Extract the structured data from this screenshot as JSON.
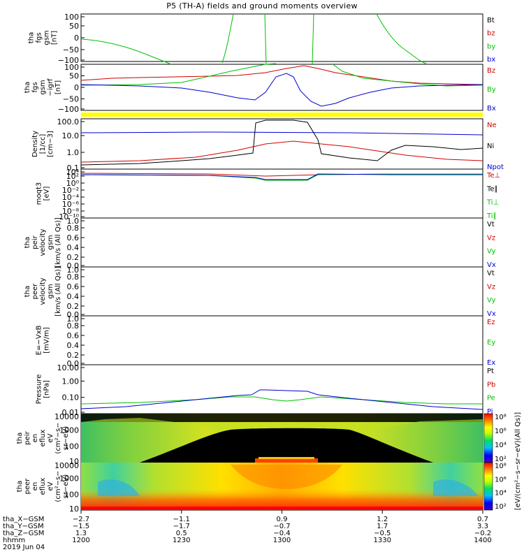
{
  "title": "P5 (TH-A) fields and ground moments overview",
  "colors": {
    "black": "#000000",
    "red": "#d00000",
    "green": "#00c000",
    "blue": "#0000d0",
    "yellow": "#ffff00"
  },
  "chart_data": [
    {
      "type": "line",
      "ylabel": [
        "tha",
        "fgs",
        "gsm",
        "[nT]"
      ],
      "yticks": [
        "100",
        "50",
        "0",
        "−50",
        "−100"
      ],
      "ylim": [
        -100,
        100
      ],
      "legend": [
        {
          "name": "Bt",
          "color": "black"
        },
        {
          "name": "bz",
          "color": "red"
        },
        {
          "name": "by",
          "color": "green"
        },
        {
          "name": "bx",
          "color": "blue"
        }
      ]
    },
    {
      "type": "line",
      "ylabel": [
        "tha",
        "fgs",
        "gsm",
        "−igrf",
        "[nT]"
      ],
      "yticks": [
        "100",
        "50",
        "0",
        "−50",
        "−100"
      ],
      "ylim": [
        -120,
        120
      ],
      "legend": [
        {
          "name": "Bz",
          "color": "red"
        },
        {
          "name": "By",
          "color": "green"
        },
        {
          "name": "Bx",
          "color": "blue"
        }
      ]
    },
    {
      "type": "line",
      "ylabel": [
        "Density",
        "[1/cc]",
        "[cm−3]"
      ],
      "yticks": [
        "100.0",
        "10.0",
        "1.0",
        "0.1"
      ],
      "ylim": [
        0.05,
        300
      ],
      "log": true,
      "legend": [
        {
          "name": "Ne",
          "color": "red"
        },
        {
          "name": "Ni",
          "color": "black"
        },
        {
          "name": "Npot",
          "color": "blue"
        }
      ]
    },
    {
      "type": "line",
      "ylabel": [
        "moqt3",
        "[eV]"
      ],
      "yticks": [
        "10⁴",
        "10²",
        "10⁰",
        "10⁻²",
        "10⁻⁴",
        "10⁻⁶",
        "10⁻⁸",
        "10⁻¹⁰"
      ],
      "log": true,
      "legend": [
        {
          "name": "Te⊥",
          "color": "red"
        },
        {
          "name": "Te∥",
          "color": "black"
        },
        {
          "name": "Ti⊥",
          "color": "green"
        },
        {
          "name": "Ti∥",
          "color": "green"
        }
      ]
    },
    {
      "type": "line",
      "ylabel": [
        "tha",
        "peir",
        "velocity",
        "gsm",
        "[km/s (All Qs)]"
      ],
      "yticks": [
        "1.0",
        "0.8",
        "0.6",
        "0.4",
        "0.2",
        "0.0"
      ],
      "ylim": [
        0,
        1
      ],
      "legend": [
        {
          "name": "Vt",
          "color": "black"
        },
        {
          "name": "Vz",
          "color": "red"
        },
        {
          "name": "Vy",
          "color": "green"
        },
        {
          "name": "Vx",
          "color": "blue"
        }
      ]
    },
    {
      "type": "line",
      "ylabel": [
        "tha",
        "peer",
        "velocity",
        "gsm",
        "[km/s (All Qs)]"
      ],
      "yticks": [
        "1.0",
        "0.8",
        "0.6",
        "0.4",
        "0.2",
        "0.0"
      ],
      "ylim": [
        0,
        1
      ],
      "legend": [
        {
          "name": "Vt",
          "color": "black"
        },
        {
          "name": "Vz",
          "color": "red"
        },
        {
          "name": "Vy",
          "color": "green"
        },
        {
          "name": "Vx",
          "color": "blue"
        }
      ]
    },
    {
      "type": "line",
      "ylabel": [
        "E=−VxB",
        "[mV/m]"
      ],
      "yticks": [
        "1.0",
        "0.8",
        "0.6",
        "0.4",
        "0.2",
        "0.0"
      ],
      "ylim": [
        0,
        1
      ],
      "legend": [
        {
          "name": "Ez",
          "color": "red"
        },
        {
          "name": "Ey",
          "color": "green"
        },
        {
          "name": "Ex",
          "color": "blue"
        }
      ]
    },
    {
      "type": "line",
      "ylabel": [
        "Pressure",
        "[nPa]"
      ],
      "yticks": [
        "10.00",
        "1.00",
        "0.10",
        "0.01"
      ],
      "log": true,
      "legend": [
        {
          "name": "Pt",
          "color": "black"
        },
        {
          "name": "Pb",
          "color": "red"
        },
        {
          "name": "Pe",
          "color": "green"
        },
        {
          "name": "Pi",
          "color": "blue"
        }
      ]
    },
    {
      "type": "heatmap",
      "ylabel": [
        "tha",
        "peir",
        "en",
        "eflux",
        "eV",
        "(cm²−s−",
        "sr−eV)"
      ],
      "yticks": [
        "10000",
        "1000",
        "100",
        "10"
      ]
    },
    {
      "type": "heatmap",
      "ylabel": [
        "tha",
        "peer",
        "en",
        "eflux",
        "eV",
        "(cm²−s−",
        "sr−eV)"
      ],
      "yticks": [
        "10000",
        "1000",
        "100",
        "10"
      ]
    }
  ],
  "colorbar": {
    "label": "[eV/(cm²−s−sr−eV)(All Qs)]",
    "upper_ticks": [
      "10⁸",
      "10⁶",
      "10⁴",
      "10²"
    ],
    "lower_ticks": [
      "10⁸",
      "10⁶",
      "10⁴",
      "10²"
    ]
  },
  "x_axis": {
    "rows": [
      {
        "label": "tha_X−GSM",
        "values": [
          "−2.7",
          "−1.1",
          "0.9",
          "1.2",
          "0.7"
        ]
      },
      {
        "label": "tha_Y−GSM",
        "values": [
          "−1.5",
          "−1.7",
          "−0.7",
          "1.7",
          "3.3"
        ]
      },
      {
        "label": "tha_Z−GSM",
        "values": [
          "1.3",
          "0.5",
          "−0.4",
          "−0.5",
          "−0.2"
        ]
      },
      {
        "label": "hhmm",
        "values": [
          "1200",
          "1230",
          "1300",
          "1330",
          "1400"
        ]
      }
    ],
    "date": "2019 Jun 04"
  }
}
